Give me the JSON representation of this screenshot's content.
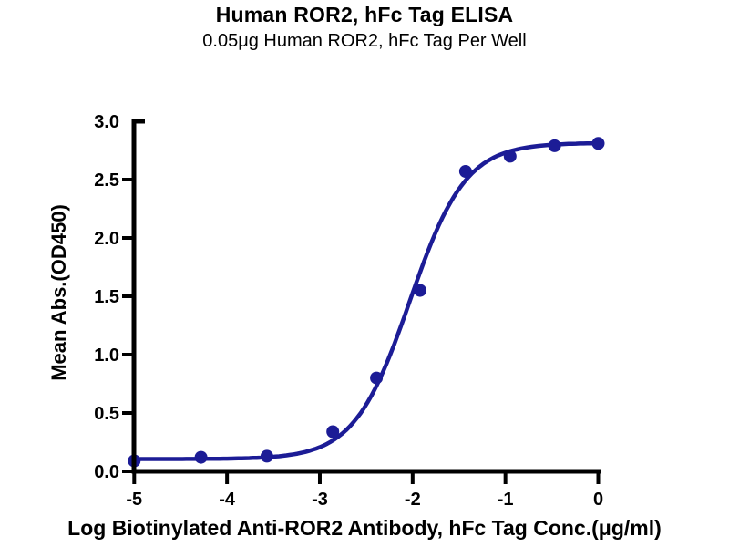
{
  "header": {
    "title": "Human ROR2, hFc Tag ELISA",
    "subtitle": "0.05μg Human ROR2, hFc Tag Per Well"
  },
  "chart_data": {
    "type": "scatter",
    "title": "Human ROR2, hFc Tag ELISA",
    "subtitle": "0.05μg Human ROR2, hFc Tag Per Well",
    "xlabel": "Log Biotinylated Anti-ROR2 Antibody, hFc Tag Conc.(μg/ml)",
    "ylabel": "Mean Abs.(OD450)",
    "xlim": [
      -5,
      0
    ],
    "ylim": [
      0,
      3
    ],
    "x_ticks": [
      -5,
      -4,
      -3,
      -2,
      -1,
      0
    ],
    "y_ticks": [
      0.0,
      0.5,
      1.0,
      1.5,
      2.0,
      2.5,
      3.0
    ],
    "grid": false,
    "legend": null,
    "points": [
      {
        "x": -5.0,
        "y": 0.09
      },
      {
        "x": -4.28,
        "y": 0.12
      },
      {
        "x": -3.57,
        "y": 0.13
      },
      {
        "x": -2.86,
        "y": 0.34
      },
      {
        "x": -2.39,
        "y": 0.8
      },
      {
        "x": -1.92,
        "y": 1.55
      },
      {
        "x": -1.43,
        "y": 2.57
      },
      {
        "x": -0.95,
        "y": 2.7
      },
      {
        "x": -0.47,
        "y": 2.79
      },
      {
        "x": 0.0,
        "y": 2.81
      }
    ],
    "fit_curve": {
      "model": "4PL",
      "bottom": 0.105,
      "top": 2.815,
      "log_ec50": -2.03,
      "hill_slope": 1.45
    },
    "colors": {
      "series": "#1c1c96",
      "axis": "#000000",
      "background": "#ffffff"
    }
  }
}
